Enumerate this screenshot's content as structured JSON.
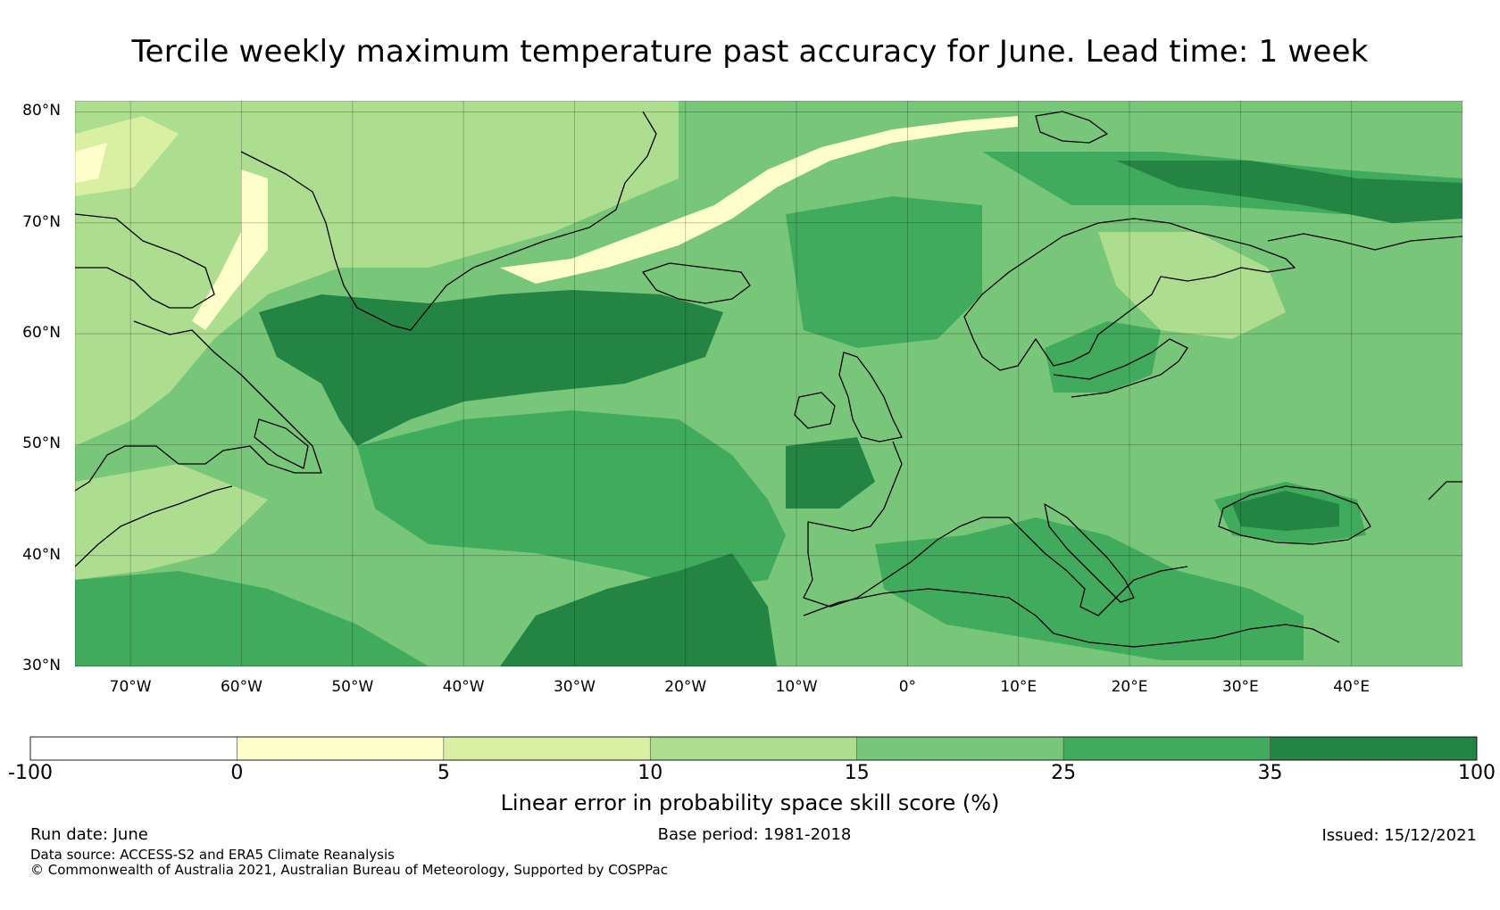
{
  "title": "Tercile weekly maximum temperature past accuracy for June. Lead time: 1 week",
  "map": {
    "lat_labels": [
      "80°N",
      "70°N",
      "60°N",
      "50°N",
      "40°N",
      "30°N"
    ],
    "lat_values": [
      80,
      70,
      60,
      50,
      40,
      30
    ],
    "lon_labels": [
      "70°W",
      "60°W",
      "50°W",
      "40°W",
      "30°W",
      "20°W",
      "10°W",
      "0°",
      "10°E",
      "20°E",
      "30°E",
      "40°E"
    ],
    "lon_values": [
      -70,
      -60,
      -50,
      -40,
      -30,
      -20,
      -10,
      0,
      10,
      20,
      30,
      40
    ],
    "extent": {
      "lon_min": -75,
      "lon_max": 50,
      "lat_min": 30,
      "lat_max": 81
    }
  },
  "colorbar": {
    "title": "Linear error in probability space skill score (%)",
    "ticks": [
      "-100",
      "0",
      "5",
      "10",
      "15",
      "25",
      "35",
      "100"
    ],
    "colors": [
      "#ffffff",
      "#ffffcc",
      "#d9f0a3",
      "#addd8e",
      "#78c679",
      "#41ab5d",
      "#238443"
    ]
  },
  "footer": {
    "run_date": "Run date: June",
    "base_period": "Base period: 1981-2018",
    "issued": "Issued: 15/12/2021",
    "data_source": "Data source: ACCESS-S2 and ERA5 Climate Reanalysis",
    "copyright": "© Commonwealth of Australia 2021, Australian Bureau of Meteorology, Supported by COSPPac"
  }
}
